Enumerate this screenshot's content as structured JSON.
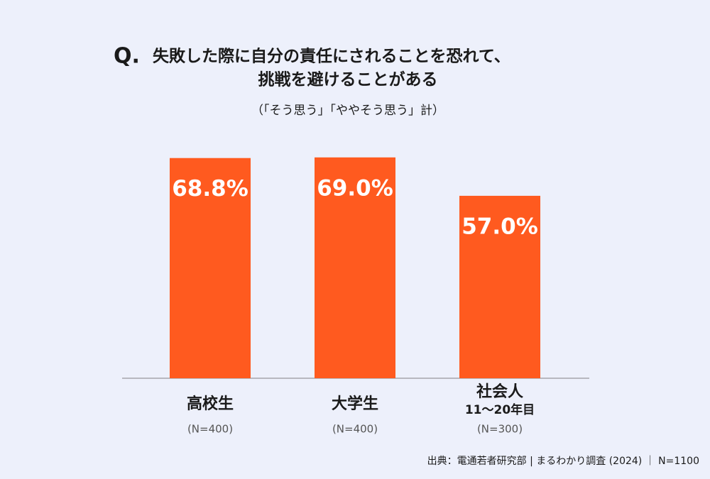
{
  "chart_data": {
    "type": "bar",
    "title_prefix": "Q.",
    "title_lines": [
      "失敗した際に自分の責任にされることを恐れて、",
      "挑戦を避けることがある"
    ],
    "subtitle": "（「そう思う」「ややそう思う」計）",
    "categories": [
      [
        "高校生"
      ],
      [
        "大学生"
      ],
      [
        "社会人",
        "11〜20年目"
      ]
    ],
    "sample_sizes": [
      "(N=400)",
      "(N=400)",
      "(N=300)"
    ],
    "values": [
      68.8,
      69.0,
      57.0
    ],
    "value_labels": [
      "68.8%",
      "69.0%",
      "57.0%"
    ],
    "color": "#ff5a1f",
    "ylim": [
      0,
      100
    ],
    "source": "出典：電通若者研究部 | まるわかり調査 (2024) ｜ N=1100"
  }
}
